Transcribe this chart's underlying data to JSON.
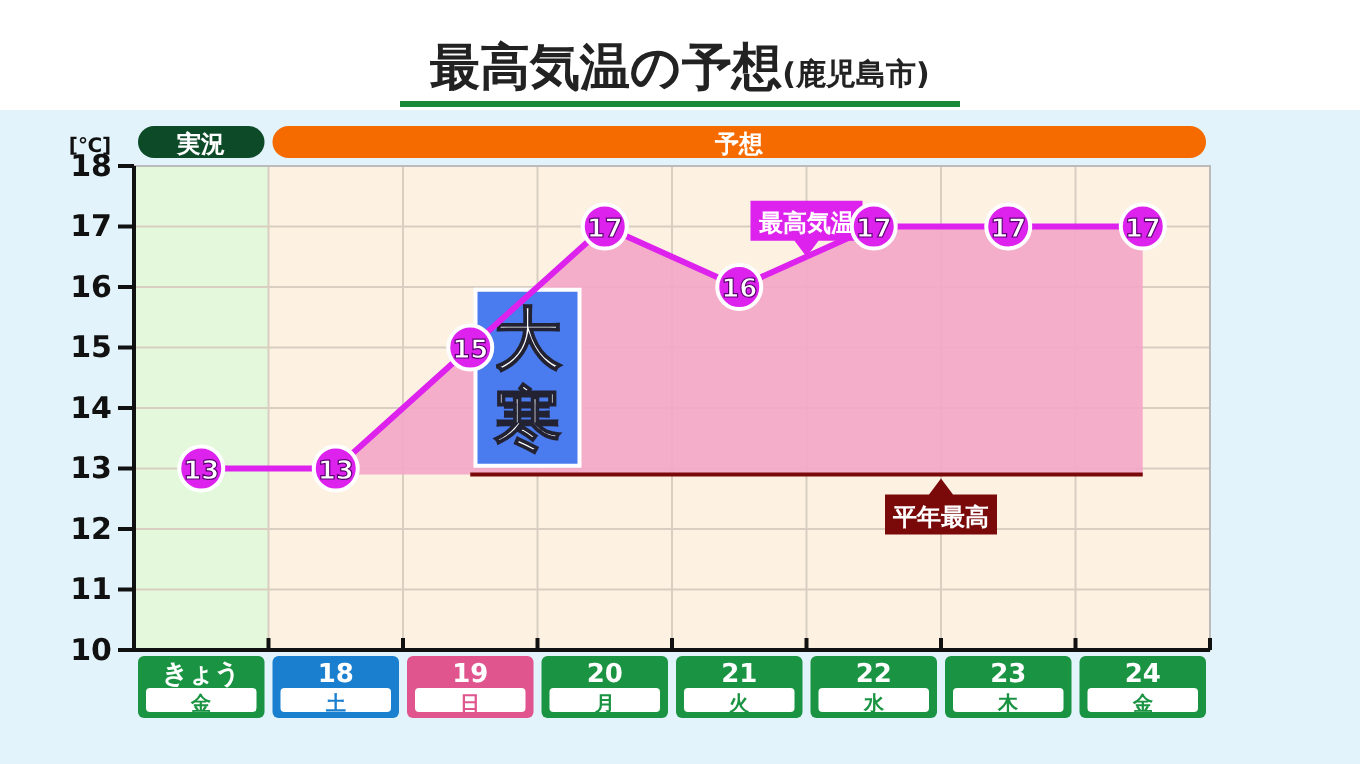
{
  "chart_data": {
    "type": "line",
    "title": "最高気温の予想",
    "subtitle": "(鹿児島市)",
    "ylabel": "[℃]",
    "categories": [
      "きょう",
      "18",
      "19",
      "20",
      "21",
      "22",
      "23",
      "24"
    ],
    "series": [
      {
        "name": "最高気温",
        "color": "#dd22ee",
        "values": [
          13,
          13,
          15,
          17,
          16,
          17,
          17,
          17
        ],
        "value_labels": [
          "13",
          "13",
          "15",
          "17",
          "16",
          "17",
          "17",
          "17"
        ],
        "lower": [
          null,
          12.9,
          12.9,
          12.9,
          12.9,
          12.9,
          12.9,
          12.9
        ],
        "upper": [
          null,
          13,
          15,
          17,
          16,
          17,
          17,
          17
        ],
        "marker": "circle"
      },
      {
        "name": "平年最高",
        "color": "#7a0a0a",
        "values": [
          null,
          null,
          12.9,
          12.9,
          12.9,
          12.9,
          12.9,
          12.9
        ],
        "marker": "none"
      }
    ],
    "ylim": [
      10,
      18
    ],
    "yticks": [
      10,
      11,
      12,
      13,
      14,
      15,
      16,
      17,
      18
    ],
    "grid": true,
    "bands": [
      {
        "axis": "x",
        "from": "きょう",
        "to": "きょう",
        "label": "実況",
        "color": "#e4f9dc"
      },
      {
        "axis": "x",
        "from": "18",
        "to": "24",
        "label": "予想",
        "color": "#fdf1e2"
      }
    ],
    "annotations": [
      "大寒",
      "金",
      "土",
      "日",
      "月",
      "火",
      "水",
      "木",
      "金"
    ]
  }
}
